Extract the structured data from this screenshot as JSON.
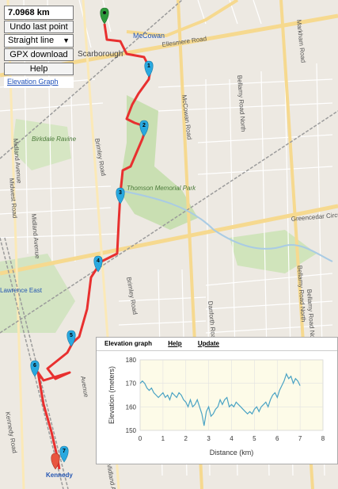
{
  "controls": {
    "distance": "7.0968 km",
    "undo_label": "Undo last point",
    "mode_selected": "Straight line",
    "gpx_label": "GPX download",
    "help_label": "Help",
    "elevation_link": "Elevation Graph"
  },
  "panel": {
    "title": "Elevation graph",
    "help_link": "Help",
    "update_link": "Update"
  },
  "map_labels": [
    {
      "id": "scarborough",
      "text": "Scarborough"
    },
    {
      "id": "mccowan-top",
      "text": "McCowan"
    },
    {
      "id": "ellesmere",
      "text": "Ellesmere Road"
    },
    {
      "id": "mccowan-road",
      "text": "McCowan Road"
    },
    {
      "id": "bellamy-n-top",
      "text": "Bellamy Road North"
    },
    {
      "id": "markham-road",
      "text": "Markham Road"
    },
    {
      "id": "birkdale",
      "text": "Birkdale Ravine"
    },
    {
      "id": "thomson",
      "text": "Thomson Memorial Park"
    },
    {
      "id": "brimley-top",
      "text": "Brimley Road"
    },
    {
      "id": "brimley-bottom",
      "text": "Brimley Road"
    },
    {
      "id": "midland-top",
      "text": "Midland Avenue"
    },
    {
      "id": "midland-bottom",
      "text": "Midland Avenue"
    },
    {
      "id": "midland-lower",
      "text": "Midland Avenue"
    },
    {
      "id": "midwest",
      "text": "Midwest Road"
    },
    {
      "id": "greencedar",
      "text": "Greencedar Circuit"
    },
    {
      "id": "danforth",
      "text": "Danforth Road"
    },
    {
      "id": "bellamy-n-mid",
      "text": "Bellamy Road North"
    },
    {
      "id": "bellamy-n-low",
      "text": "Bellamy Road North"
    },
    {
      "id": "lawrence-east",
      "text": "Lawrence East"
    },
    {
      "id": "kennedy-road",
      "text": "Kennedy Road"
    },
    {
      "id": "kennedy-station",
      "text": "Kennedy"
    },
    {
      "id": "avenue",
      "text": "Avenue"
    }
  ],
  "markers": [
    {
      "id": "start",
      "label": ""
    },
    {
      "id": "m1",
      "label": "1"
    },
    {
      "id": "m2",
      "label": "2"
    },
    {
      "id": "m3",
      "label": "3"
    },
    {
      "id": "m4",
      "label": "4"
    },
    {
      "id": "m5",
      "label": "5"
    },
    {
      "id": "m6",
      "label": "6"
    },
    {
      "id": "m7",
      "label": "7"
    },
    {
      "id": "end",
      "label": ""
    }
  ],
  "colors": {
    "route": "#e8302f",
    "marker": "#29a9e0",
    "marker_start": "#2e9a3c",
    "marker_end": "#e8553f",
    "elev_line": "#4aa3c4",
    "chart_bg": "#fdfbe8",
    "park": "#c9dfb2",
    "rail": "#9b9b9b"
  },
  "chart_data": {
    "type": "line",
    "title": "",
    "xlabel": "Distance (km)",
    "ylabel": "Elevation (meters)",
    "xlim": [
      0,
      8
    ],
    "ylim": [
      150,
      180
    ],
    "xticks": [
      0,
      1,
      2,
      3,
      4,
      5,
      6,
      7,
      8
    ],
    "yticks": [
      150,
      160,
      170,
      180
    ],
    "grid": true,
    "series": [
      {
        "x": [
          0,
          0.1,
          0.2,
          0.3,
          0.4,
          0.5,
          0.6,
          0.7,
          0.8,
          0.9,
          1.0,
          1.1,
          1.2,
          1.3,
          1.4,
          1.5,
          1.6,
          1.7,
          1.8,
          1.9,
          2.0,
          2.1,
          2.2,
          2.3,
          2.4,
          2.5,
          2.6,
          2.7,
          2.8,
          2.9,
          3.0,
          3.1,
          3.2,
          3.3,
          3.4,
          3.5,
          3.6,
          3.7,
          3.8,
          3.9,
          4.0,
          4.1,
          4.2,
          4.3,
          4.4,
          4.5,
          4.6,
          4.7,
          4.8,
          4.9,
          5.0,
          5.1,
          5.2,
          5.3,
          5.4,
          5.5,
          5.6,
          5.7,
          5.8,
          5.9,
          6.0,
          6.1,
          6.2,
          6.3,
          6.4,
          6.5,
          6.6,
          6.7,
          6.8,
          6.9,
          7.0
        ],
        "y": [
          170,
          171,
          170,
          168,
          167,
          168,
          166,
          165,
          164,
          165,
          166,
          164,
          165,
          163,
          166,
          165,
          164,
          166,
          165,
          163,
          162,
          160,
          163,
          160,
          161,
          163,
          160,
          157,
          152,
          158,
          160,
          156,
          157,
          159,
          160,
          163,
          161,
          163,
          164,
          160,
          161,
          160,
          162,
          161,
          160,
          159,
          158,
          157,
          158,
          157,
          159,
          160,
          158,
          160,
          161,
          162,
          160,
          163,
          165,
          166,
          164,
          167,
          169,
          171,
          174,
          172,
          173,
          170,
          172,
          171,
          169
        ]
      }
    ]
  }
}
